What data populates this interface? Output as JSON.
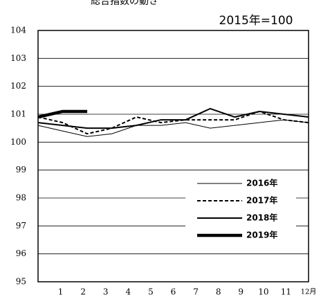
{
  "chart_data": {
    "type": "line",
    "title": "総合指数の動き",
    "annotation": "2015年=100",
    "categories": [
      "1",
      "2",
      "3",
      "4",
      "5",
      "6",
      "7",
      "8",
      "9",
      "10",
      "11",
      "12月"
    ],
    "ylim": [
      95,
      104
    ],
    "yticks": [
      95,
      96,
      97,
      98,
      99,
      100,
      101,
      102,
      103,
      104
    ],
    "grid": true,
    "series": [
      {
        "name": "2016年",
        "color": "#000000",
        "line_style": "thin",
        "values": [
          100.6,
          100.4,
          100.2,
          100.3,
          100.6,
          100.6,
          100.7,
          100.5,
          100.6,
          100.7,
          100.8,
          100.7
        ]
      },
      {
        "name": "2017年",
        "color": "#000000",
        "line_style": "dashed",
        "values": [
          100.9,
          100.7,
          100.3,
          100.5,
          100.9,
          100.7,
          100.8,
          100.8,
          100.8,
          101.1,
          100.8,
          100.7
        ]
      },
      {
        "name": "2018年",
        "color": "#000000",
        "line_style": "medium",
        "values": [
          100.7,
          100.6,
          100.5,
          100.5,
          100.6,
          100.8,
          100.8,
          101.2,
          100.9,
          101.1,
          101.0,
          100.9
        ]
      },
      {
        "name": "2019年",
        "color": "#000000",
        "line_style": "thick",
        "values": [
          100.9,
          101.1,
          101.1,
          null,
          null,
          null,
          null,
          null,
          null,
          null,
          null,
          null
        ]
      }
    ]
  }
}
